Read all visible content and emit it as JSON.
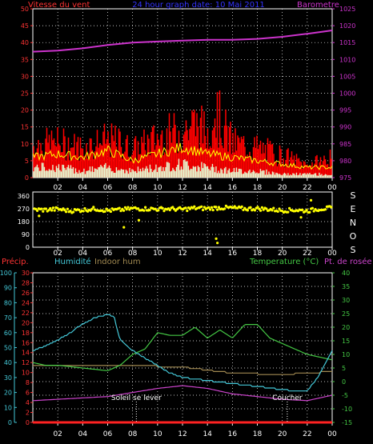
{
  "header": {
    "wind_title": "Vitesse du vent",
    "graph_title": "24 hour graph date: 10 Mai 2011",
    "baro_title": "Barometre"
  },
  "panel2": {
    "compass_letters": [
      "S",
      "E",
      "N",
      "O",
      "S"
    ]
  },
  "panel3": {
    "precip_label": "Précip.",
    "humidity_label": "Humidité",
    "indoor_label": "Indoor hum",
    "temp_label": "Temperature (°C)",
    "dew_label": "Pt. de rosée",
    "sunrise_label": "Soleil se lever",
    "sunset_label": "Coucher"
  },
  "colors": {
    "wind": "#ff0000",
    "gust": "#ffff00",
    "wind_avg": "#e8f8d0",
    "baro": "#cc33cc",
    "direction": "#ffff00",
    "precip": "#ff2222",
    "humidity": "#44c8d8",
    "indoor": "#a08850",
    "temp": "#44c844",
    "dew": "#cc44cc",
    "grid": "#ffffff"
  },
  "chart_data": [
    {
      "type": "area",
      "x_ticks": [
        "02",
        "04",
        "06",
        "08",
        "10",
        "12",
        "14",
        "16",
        "18",
        "20",
        "22",
        "00"
      ],
      "y_left": {
        "label": "Vitesse du vent",
        "range": [
          0,
          50
        ],
        "ticks": [
          0,
          5,
          10,
          15,
          20,
          25,
          30,
          35,
          40,
          45,
          50
        ]
      },
      "y_right": {
        "label": "Barometre",
        "range": [
          975,
          1025
        ],
        "ticks": [
          975,
          980,
          985,
          990,
          995,
          1000,
          1005,
          1010,
          1015,
          1020,
          1025
        ]
      },
      "grid": true,
      "series": {
        "barometer": {
          "x": [
            0,
            2,
            4,
            6,
            8,
            10,
            12,
            14,
            16,
            18,
            20,
            22,
            24
          ],
          "y": [
            1012.3,
            1012.6,
            1013.3,
            1014.3,
            1015.0,
            1015.3,
            1015.6,
            1015.8,
            1015.8,
            1016.1,
            1016.7,
            1017.6,
            1018.6
          ]
        },
        "wind_gust": {
          "x": [
            0,
            2,
            4,
            6,
            7,
            8,
            10,
            12,
            13,
            14,
            14.5,
            16,
            18,
            20,
            22,
            24
          ],
          "y": [
            13,
            14,
            12,
            15,
            14,
            11,
            16,
            19,
            22,
            18,
            28,
            14,
            12,
            9,
            5,
            8
          ]
        },
        "wind_speed": {
          "x": [
            0,
            2,
            4,
            6,
            8,
            10,
            12,
            14,
            16,
            18,
            20,
            22,
            24
          ],
          "y": [
            6,
            7,
            6,
            8,
            5,
            7,
            9,
            7,
            6,
            5,
            4,
            3,
            3
          ]
        },
        "wind_avg": {
          "x": [
            0,
            2,
            4,
            6,
            8,
            10,
            12,
            14,
            16,
            18,
            20,
            22,
            24
          ],
          "y": [
            3,
            3,
            2,
            3,
            2,
            3,
            4,
            3,
            2,
            2,
            1,
            1,
            1
          ]
        }
      }
    },
    {
      "type": "scatter",
      "x_ticks": [
        "02",
        "04",
        "06",
        "08",
        "10",
        "12",
        "14",
        "16",
        "18",
        "20",
        "22",
        "00"
      ],
      "y_left": {
        "range": [
          0,
          360
        ],
        "ticks": [
          0,
          90,
          180,
          270,
          360
        ]
      },
      "grid": true,
      "series": {
        "wind_direction": {
          "x": [
            0,
            1,
            2,
            3,
            4,
            5,
            6,
            7,
            8,
            9,
            10,
            11,
            12,
            13,
            14,
            15,
            16,
            17,
            18,
            19,
            20,
            21,
            22,
            23,
            24
          ],
          "y": [
            265,
            262,
            268,
            255,
            262,
            270,
            258,
            262,
            272,
            270,
            268,
            270,
            266,
            275,
            272,
            278,
            276,
            270,
            272,
            266,
            258,
            262,
            255,
            270,
            275
          ]
        },
        "outliers": {
          "x": [
            0.5,
            7.3,
            8.5,
            14.7,
            14.8,
            21.5,
            22.3
          ],
          "y": [
            220,
            140,
            190,
            60,
            30,
            210,
            330
          ]
        }
      }
    },
    {
      "type": "line",
      "x_ticks": [
        "02",
        "04",
        "06",
        "08",
        "10",
        "12",
        "14",
        "16",
        "18",
        "20",
        "22",
        "00"
      ],
      "axes": {
        "humidity": {
          "range": [
            0,
            100
          ],
          "ticks": [
            0,
            10,
            20,
            30,
            40,
            50,
            60,
            70,
            80,
            90,
            100
          ]
        },
        "precip": {
          "range": [
            0,
            30
          ],
          "ticks": [
            0,
            2,
            4,
            6,
            8,
            10,
            12,
            14,
            16,
            18,
            20,
            22,
            24,
            26,
            28,
            30
          ]
        },
        "temperature": {
          "range": [
            -15,
            40
          ],
          "ticks": [
            -15,
            -10,
            -5,
            0,
            5,
            10,
            15,
            20,
            25,
            30,
            35,
            40
          ]
        }
      },
      "grid": true,
      "series": {
        "humidity": {
          "x": [
            0,
            1,
            2,
            3,
            4,
            5,
            6,
            6.5,
            7,
            8,
            9,
            10,
            11,
            12,
            13,
            14,
            15,
            16,
            17,
            18,
            19,
            20,
            21,
            22,
            23,
            24
          ],
          "y": [
            48,
            51,
            55,
            60,
            66,
            70,
            72,
            71,
            55,
            48,
            43,
            38,
            33,
            30,
            29,
            28,
            27,
            26,
            25,
            24,
            23,
            22,
            21,
            21,
            32,
            48
          ]
        },
        "temperature": {
          "x": [
            0,
            1,
            2,
            3,
            4,
            5,
            6,
            7,
            8,
            9,
            10,
            11,
            12,
            13,
            14,
            15,
            16,
            17,
            18,
            19,
            20,
            21,
            22,
            23,
            24
          ],
          "y": [
            7,
            6,
            6,
            5.5,
            5,
            4.5,
            4,
            6,
            10,
            12,
            18,
            17,
            17,
            20,
            16,
            19,
            16,
            21,
            21,
            16,
            14,
            12,
            10,
            9,
            8
          ]
        },
        "dewpoint": {
          "x": [
            0,
            2,
            4,
            6,
            8,
            10,
            12,
            14,
            16,
            18,
            20,
            22,
            24
          ],
          "y": [
            -7,
            -6.5,
            -6,
            -5.5,
            -4,
            -2.5,
            -1.5,
            -2.5,
            -4.5,
            -5.5,
            -6.5,
            -7,
            -5
          ]
        },
        "indoor_hum": {
          "x": [
            0,
            4,
            8,
            12,
            16,
            20,
            24
          ],
          "y": [
            38,
            38,
            38,
            37,
            33,
            32,
            34
          ]
        },
        "precipitation": {
          "x": [
            0,
            24
          ],
          "y": [
            0,
            0
          ]
        }
      },
      "markers": {
        "sunrise_hour": 8.3,
        "sunset_hour": 20.4
      }
    }
  ]
}
